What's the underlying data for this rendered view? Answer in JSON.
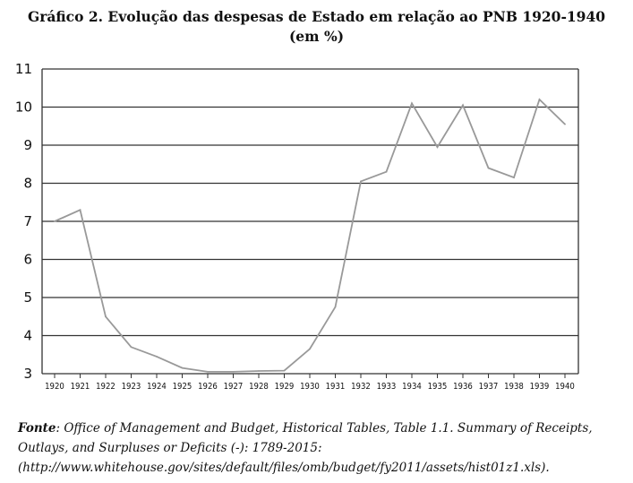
{
  "title": {
    "line1": "Gráfico 2. Evolução das despesas de Estado em relação ao PNB 1920-1940",
    "line2": "(em %)"
  },
  "source": {
    "label": "Fonte",
    "text": ": Office of Management and Budget, Historical Tables, Table 1.1. Summary of Receipts, Outlays, and Surpluses or Deficits (-): 1789-2015: (http://www.whitehouse.gov/sites/default/files/omb/budget/fy2011/assets/hist01z1.xls)."
  },
  "chart_data": {
    "type": "line",
    "title": "Gráfico 2. Evolução das despesas de Estado em relação ao PNB 1920-1940 (em %)",
    "xlabel": "",
    "ylabel": "",
    "ylim": [
      3,
      11
    ],
    "yticks": [
      "3",
      "4",
      "5",
      "6",
      "7",
      "8",
      "9",
      "10",
      "11"
    ],
    "categories": [
      "1920",
      "1921",
      "1922",
      "1923",
      "1924",
      "1925",
      "1926",
      "1927",
      "1928",
      "1929",
      "1930",
      "1931",
      "1932",
      "1933",
      "1934",
      "1935",
      "1936",
      "1937",
      "1938",
      "1939",
      "1940"
    ],
    "grid": "horizontal",
    "series": [
      {
        "values": [
          7.0,
          7.3,
          4.5,
          3.7,
          3.45,
          3.15,
          3.05,
          3.05,
          3.07,
          3.08,
          3.65,
          4.75,
          8.05,
          8.3,
          10.1,
          8.95,
          10.05,
          8.4,
          8.15,
          10.2,
          9.55
        ],
        "color": "#999999"
      }
    ],
    "colors": {
      "line": "#999999",
      "grid": "#333333",
      "axis": "#333333"
    }
  }
}
